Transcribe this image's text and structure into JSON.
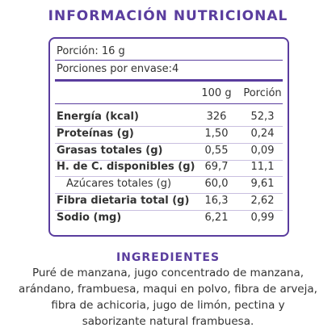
{
  "header": {
    "title": "INFORMACIÓN NUTRICIONAL"
  },
  "serving": {
    "portion": "Porción: 16 g",
    "servings_per_package": "Porciones por envase:4"
  },
  "table": {
    "columns": [
      "100 g",
      "Porción"
    ],
    "rows": [
      {
        "label": "Energía (kcal)",
        "per_100g": "326",
        "per_portion": "52,3",
        "bold": true
      },
      {
        "label": "Proteínas (g)",
        "per_100g": "1,50",
        "per_portion": "0,24",
        "bold": true
      },
      {
        "label": "Grasas totales (g)",
        "per_100g": "0,55",
        "per_portion": "0,09",
        "bold": true
      },
      {
        "label": "H. de C. disponibles (g)",
        "per_100g": "69,7",
        "per_portion": "11,1",
        "bold": true
      },
      {
        "label": "Azúcares totales (g)",
        "per_100g": "60,0",
        "per_portion": "9,61",
        "bold": false
      },
      {
        "label": "Fibra dietaria total (g)",
        "per_100g": "16,3",
        "per_portion": "2,62",
        "bold": true
      },
      {
        "label": "Sodio (mg)",
        "per_100g": "6,21",
        "per_portion": "0,99",
        "bold": true
      }
    ]
  },
  "ingredients": {
    "title": "INGREDIENTES",
    "lines": [
      "Puré de manzana, jugo concentrado de manzana,",
      "arándano, frambuesa, maqui en polvo, fibra de arveja,",
      "fibra de achicoria, jugo de limón, pectina y",
      "saborizante natural frambuesa."
    ]
  }
}
